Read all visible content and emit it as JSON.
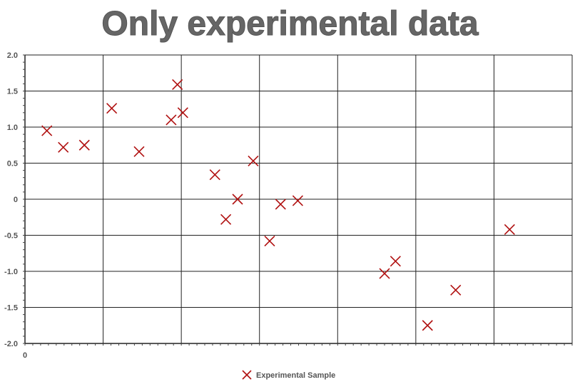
{
  "chart_data": {
    "type": "scatter",
    "title": "Only experimental data",
    "xlabel": "",
    "ylabel": "",
    "xlim": [
      0,
      7
    ],
    "ylim": [
      -2.0,
      2.0
    ],
    "x_tick_labels": [
      "0"
    ],
    "y_ticks": [
      2.0,
      1.5,
      1.0,
      0.5,
      0,
      -0.5,
      -1.0,
      -1.5,
      -2.0
    ],
    "y_tick_labels": [
      "2.0",
      "1.5",
      "1.0",
      "0.5",
      "0",
      "-0.5",
      "-1.0",
      "-1.5",
      "-2.0"
    ],
    "grid": true,
    "legend": "bottom-center",
    "series": [
      {
        "name": "Experimental Sample",
        "marker": "x",
        "color": "#b01010",
        "points": [
          {
            "x": 0.28,
            "y": 0.95
          },
          {
            "x": 0.49,
            "y": 0.72
          },
          {
            "x": 0.76,
            "y": 0.75
          },
          {
            "x": 1.11,
            "y": 1.26
          },
          {
            "x": 1.46,
            "y": 0.66
          },
          {
            "x": 1.87,
            "y": 1.1
          },
          {
            "x": 1.95,
            "y": 1.59
          },
          {
            "x": 2.02,
            "y": 1.2
          },
          {
            "x": 2.43,
            "y": 0.34
          },
          {
            "x": 2.57,
            "y": -0.28
          },
          {
            "x": 2.72,
            "y": 0.0
          },
          {
            "x": 2.92,
            "y": 0.53
          },
          {
            "x": 3.13,
            "y": -0.58
          },
          {
            "x": 3.27,
            "y": -0.07
          },
          {
            "x": 3.49,
            "y": -0.02
          },
          {
            "x": 4.6,
            "y": -1.03
          },
          {
            "x": 4.74,
            "y": -0.86
          },
          {
            "x": 5.15,
            "y": -1.75
          },
          {
            "x": 5.51,
            "y": -1.26
          },
          {
            "x": 6.2,
            "y": -0.42
          }
        ]
      }
    ]
  }
}
